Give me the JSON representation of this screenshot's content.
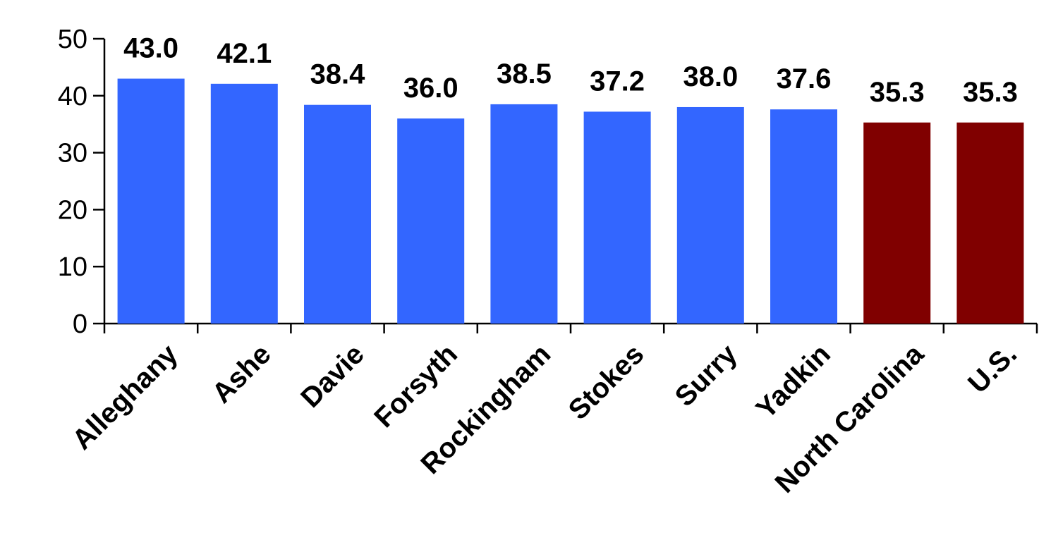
{
  "chart_data": {
    "type": "bar",
    "title": "",
    "xlabel": "",
    "ylabel": "",
    "ylim": [
      0,
      50
    ],
    "yticks": [
      "0",
      "10",
      "20",
      "30",
      "40",
      "50"
    ],
    "grid": false,
    "categories": [
      "Alleghany",
      "Ashe",
      "Davie",
      "Forsyth",
      "Rockingham",
      "Stokes",
      "Surry",
      "Yadkin",
      "North Carolina",
      "U.S."
    ],
    "values": [
      43.0,
      42.1,
      38.4,
      36.0,
      38.5,
      37.2,
      38.0,
      37.6,
      35.3,
      35.3
    ],
    "value_labels": [
      "43.0",
      "42.1",
      "38.4",
      "36.0",
      "38.5",
      "37.2",
      "38.0",
      "37.6",
      "35.3",
      "35.3"
    ],
    "bar_colors": [
      "#3366ff",
      "#3366ff",
      "#3366ff",
      "#3366ff",
      "#3366ff",
      "#3366ff",
      "#3366ff",
      "#3366ff",
      "#800000",
      "#800000"
    ]
  }
}
